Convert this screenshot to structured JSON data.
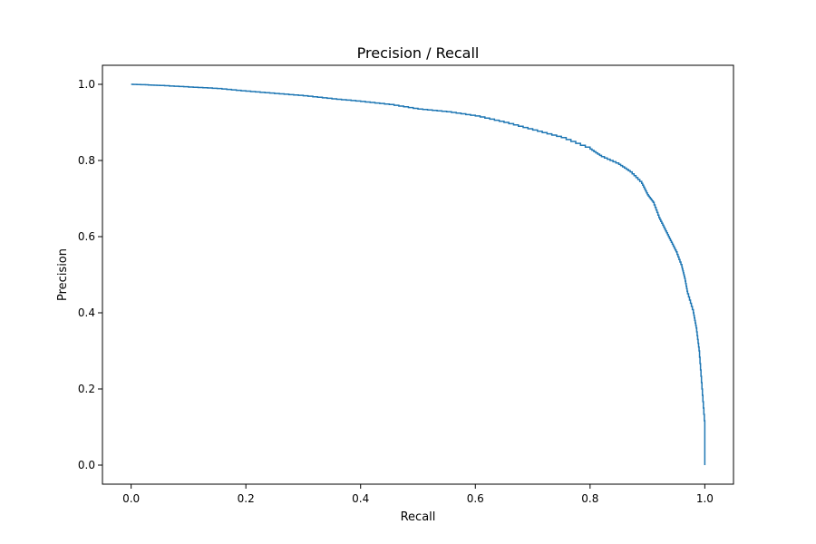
{
  "chart_data": {
    "type": "line",
    "title": "Precision / Recall",
    "xlabel": "Recall",
    "ylabel": "Precision",
    "xlim": [
      -0.05,
      1.05
    ],
    "ylim": [
      -0.05,
      1.05
    ],
    "x_ticks": [
      0.0,
      0.2,
      0.4,
      0.6,
      0.8,
      1.0
    ],
    "x_tick_labels": [
      "0.0",
      "0.2",
      "0.4",
      "0.6",
      "0.8",
      "1.0"
    ],
    "y_ticks": [
      0.0,
      0.2,
      0.4,
      0.6,
      0.8,
      1.0
    ],
    "y_tick_labels": [
      "0.0",
      "0.2",
      "0.4",
      "0.6",
      "0.8",
      "1.0"
    ],
    "grid": false,
    "line_style": "steps",
    "series": [
      {
        "color": "#1f77b4",
        "x": [
          0.0,
          0.02,
          0.05,
          0.1,
          0.15,
          0.2,
          0.25,
          0.3,
          0.35,
          0.4,
          0.45,
          0.5,
          0.55,
          0.6,
          0.65,
          0.7,
          0.75,
          0.8,
          0.82,
          0.85,
          0.87,
          0.89,
          0.9,
          0.91,
          0.92,
          0.93,
          0.94,
          0.95,
          0.96,
          0.965,
          0.97,
          0.98,
          0.985,
          0.99,
          0.995,
          1.0,
          1.0
        ],
        "y": [
          1.0,
          0.999,
          0.997,
          0.993,
          0.989,
          0.982,
          0.976,
          0.97,
          0.962,
          0.955,
          0.947,
          0.935,
          0.928,
          0.917,
          0.9,
          0.88,
          0.86,
          0.83,
          0.81,
          0.79,
          0.77,
          0.74,
          0.71,
          0.69,
          0.65,
          0.62,
          0.59,
          0.56,
          0.52,
          0.49,
          0.45,
          0.4,
          0.36,
          0.3,
          0.2,
          0.1,
          0.0
        ]
      }
    ]
  }
}
